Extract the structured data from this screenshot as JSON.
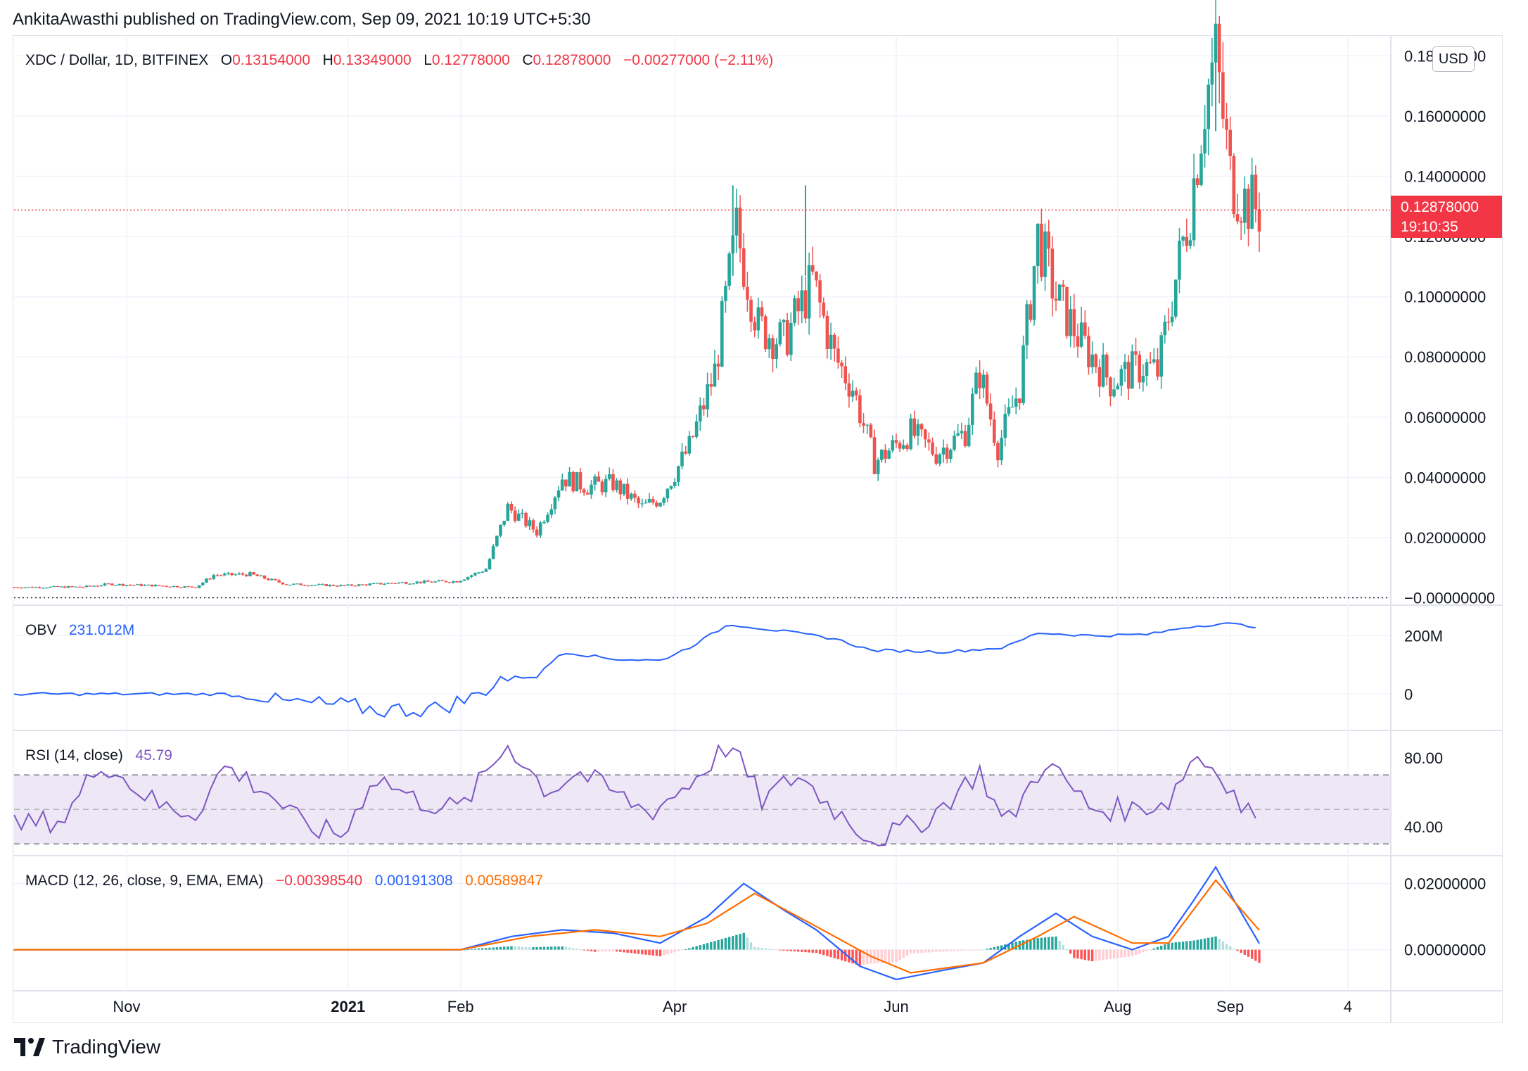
{
  "header": {
    "text": "AnkitaAwasthi published on TradingView.com, Sep 09, 2021 10:19 UTC+5:30"
  },
  "footer": {
    "brand": "TradingView"
  },
  "main_pane": {
    "symbol": "XDC / Dollar, 1D, BITFINEX",
    "o_label": "O",
    "o_value": "0.13154000",
    "h_label": "H",
    "h_value": "0.13349000",
    "l_label": "L",
    "l_value": "0.12778000",
    "c_label": "C",
    "c_value": "0.12878000",
    "change": "−0.00277000 (−2.11%)",
    "currency": "USD",
    "last_price": "0.12878000",
    "countdown": "19:10:35"
  },
  "obv_pane": {
    "name": "OBV",
    "value": "231.012M",
    "ticks": [
      "200M",
      "0"
    ]
  },
  "rsi_pane": {
    "name": "RSI (14, close)",
    "value": "45.79",
    "ticks": [
      "80.00",
      "40.00"
    ]
  },
  "macd_pane": {
    "name": "MACD (12, 26, close, 9, EMA, EMA)",
    "hist_value": "−0.00398540",
    "macd_value": "0.00191308",
    "signal_value": "0.00589847",
    "ticks": [
      "0.02000000",
      "0.00000000"
    ]
  },
  "x_axis": {
    "labels": [
      "Nov",
      "2021",
      "Feb",
      "Apr",
      "Jun",
      "Aug",
      "Sep",
      "4"
    ]
  },
  "colors": {
    "up": "#26a69a",
    "down": "#ef5350",
    "obv": "#2962ff",
    "rsi": "#7e57c2",
    "rsi_band": "#ede7f6",
    "macd": "#2962ff",
    "signal": "#ff6d00",
    "grid": "#f0f3fa",
    "price_line": "#f23645"
  },
  "chart_data": {
    "type": "candlestick",
    "title": "XDC / Dollar, 1D, BITFINEX",
    "y_ticks": [
      "0.18000000",
      "0.16000000",
      "0.14000000",
      "0.12000000",
      "0.10000000",
      "0.08000000",
      "0.06000000",
      "0.04000000",
      "0.02000000",
      "−0.00000000"
    ],
    "ylim": [
      -0.002,
      0.185
    ],
    "x_range": [
      "2020-10-01",
      "2021-09-09"
    ],
    "close_path": [
      [
        "2020-10-01",
        0.0035
      ],
      [
        "2020-10-20",
        0.0036
      ],
      [
        "2020-10-27",
        0.0045
      ],
      [
        "2020-11-10",
        0.004
      ],
      [
        "2020-11-20",
        0.0035
      ],
      [
        "2020-11-25",
        0.0075
      ],
      [
        "2020-12-05",
        0.0078
      ],
      [
        "2020-12-15",
        0.0045
      ],
      [
        "2020-12-31",
        0.004
      ],
      [
        "2021-01-15",
        0.005
      ],
      [
        "2021-01-31",
        0.0055
      ],
      [
        "2021-02-08",
        0.0095
      ],
      [
        "2021-02-14",
        0.03
      ],
      [
        "2021-02-22",
        0.022
      ],
      [
        "2021-03-01",
        0.04
      ],
      [
        "2021-03-08",
        0.037
      ],
      [
        "2021-03-15",
        0.038
      ],
      [
        "2021-03-23",
        0.03
      ],
      [
        "2021-03-28",
        0.033
      ],
      [
        "2021-04-05",
        0.05
      ],
      [
        "2021-04-12",
        0.075
      ],
      [
        "2021-04-18",
        0.122
      ],
      [
        "2021-04-24",
        0.09
      ],
      [
        "2021-05-01",
        0.085
      ],
      [
        "2021-05-05",
        0.095
      ],
      [
        "2021-05-09",
        0.105
      ],
      [
        "2021-05-15",
        0.08
      ],
      [
        "2021-05-20",
        0.07
      ],
      [
        "2021-05-26",
        0.045
      ],
      [
        "2021-06-05",
        0.055
      ],
      [
        "2021-06-12",
        0.048
      ],
      [
        "2021-06-20",
        0.055
      ],
      [
        "2021-06-24",
        0.075
      ],
      [
        "2021-06-29",
        0.05
      ],
      [
        "2021-07-05",
        0.07
      ],
      [
        "2021-07-10",
        0.12
      ],
      [
        "2021-07-15",
        0.1
      ],
      [
        "2021-07-22",
        0.085
      ],
      [
        "2021-07-30",
        0.072
      ],
      [
        "2021-08-08",
        0.077
      ],
      [
        "2021-08-12",
        0.075
      ],
      [
        "2021-08-16",
        0.1
      ],
      [
        "2021-08-21",
        0.13
      ],
      [
        "2021-08-25",
        0.165
      ],
      [
        "2021-08-28",
        0.18
      ],
      [
        "2021-09-01",
        0.14
      ],
      [
        "2021-09-05",
        0.132
      ],
      [
        "2021-09-09",
        0.12878
      ]
    ],
    "highlight_highs": [
      [
        "2021-04-17",
        0.137
      ],
      [
        "2021-05-07",
        0.137
      ],
      [
        "2021-08-28",
        0.185
      ]
    ],
    "obv_path": [
      [
        "2020-10-01",
        0
      ],
      [
        "2020-11-28",
        0
      ],
      [
        "2020-12-10",
        -25
      ],
      [
        "2020-12-31",
        -40
      ],
      [
        "2021-01-10",
        -55
      ],
      [
        "2021-01-25",
        -50
      ],
      [
        "2021-02-05",
        -10
      ],
      [
        "2021-02-12",
        55
      ],
      [
        "2021-02-22",
        60
      ],
      [
        "2021-03-01",
        145
      ],
      [
        "2021-03-15",
        120
      ],
      [
        "2021-03-28",
        115
      ],
      [
        "2021-04-05",
        160
      ],
      [
        "2021-04-16",
        240
      ],
      [
        "2021-05-01",
        215
      ],
      [
        "2021-05-15",
        190
      ],
      [
        "2021-05-25",
        150
      ],
      [
        "2021-06-15",
        145
      ],
      [
        "2021-07-01",
        160
      ],
      [
        "2021-07-10",
        210
      ],
      [
        "2021-07-25",
        200
      ],
      [
        "2021-08-10",
        205
      ],
      [
        "2021-08-20",
        230
      ],
      [
        "2021-08-30",
        242
      ],
      [
        "2021-09-09",
        231
      ]
    ],
    "obv_ylim": [
      -120,
      300
    ],
    "rsi_path": [
      [
        "2020-10-01",
        40
      ],
      [
        "2020-10-15",
        45
      ],
      [
        "2020-10-25",
        78
      ],
      [
        "2020-11-10",
        52
      ],
      [
        "2020-11-20",
        48
      ],
      [
        "2020-11-28",
        75
      ],
      [
        "2020-12-10",
        60
      ],
      [
        "2020-12-20",
        40
      ],
      [
        "2020-12-31",
        35
      ],
      [
        "2021-01-08",
        70
      ],
      [
        "2021-01-20",
        55
      ],
      [
        "2021-02-01",
        50
      ],
      [
        "2021-02-14",
        88
      ],
      [
        "2021-02-25",
        60
      ],
      [
        "2021-03-05",
        72
      ],
      [
        "2021-03-15",
        60
      ],
      [
        "2021-03-25",
        48
      ],
      [
        "2021-04-05",
        65
      ],
      [
        "2021-04-16",
        88
      ],
      [
        "2021-04-25",
        55
      ],
      [
        "2021-05-05",
        70
      ],
      [
        "2021-05-15",
        50
      ],
      [
        "2021-05-26",
        32
      ],
      [
        "2021-06-10",
        45
      ],
      [
        "2021-06-24",
        72
      ],
      [
        "2021-07-01",
        40
      ],
      [
        "2021-07-12",
        78
      ],
      [
        "2021-07-25",
        50
      ],
      [
        "2021-08-05",
        50
      ],
      [
        "2021-08-15",
        55
      ],
      [
        "2021-08-22",
        82
      ],
      [
        "2021-08-30",
        70
      ],
      [
        "2021-09-04",
        52
      ],
      [
        "2021-09-09",
        45.79
      ]
    ],
    "rsi_ylim": [
      24,
      95
    ],
    "rsi_bands": [
      30,
      50,
      70
    ],
    "macd_path": [
      [
        "2020-10-01",
        0
      ],
      [
        "2021-02-01",
        0
      ],
      [
        "2021-02-15",
        0.004
      ],
      [
        "2021-03-01",
        0.006
      ],
      [
        "2021-03-15",
        0.005
      ],
      [
        "2021-03-28",
        0.002
      ],
      [
        "2021-04-10",
        0.01
      ],
      [
        "2021-04-20",
        0.02
      ],
      [
        "2021-05-01",
        0.012
      ],
      [
        "2021-05-10",
        0.006
      ],
      [
        "2021-05-22",
        -0.005
      ],
      [
        "2021-06-01",
        -0.009
      ],
      [
        "2021-06-15",
        -0.006
      ],
      [
        "2021-06-25",
        -0.004
      ],
      [
        "2021-07-05",
        0.004
      ],
      [
        "2021-07-15",
        0.011
      ],
      [
        "2021-07-25",
        0.004
      ],
      [
        "2021-08-05",
        0.0
      ],
      [
        "2021-08-15",
        0.004
      ],
      [
        "2021-08-22",
        0.015
      ],
      [
        "2021-08-28",
        0.025
      ],
      [
        "2021-09-02",
        0.015
      ],
      [
        "2021-09-09",
        0.0019
      ]
    ],
    "signal_path": [
      [
        "2020-10-01",
        0
      ],
      [
        "2021-02-01",
        0
      ],
      [
        "2021-02-20",
        0.004
      ],
      [
        "2021-03-10",
        0.006
      ],
      [
        "2021-03-28",
        0.004
      ],
      [
        "2021-04-10",
        0.008
      ],
      [
        "2021-04-23",
        0.017
      ],
      [
        "2021-05-10",
        0.007
      ],
      [
        "2021-05-25",
        -0.002
      ],
      [
        "2021-06-05",
        -0.007
      ],
      [
        "2021-06-25",
        -0.004
      ],
      [
        "2021-07-10",
        0.004
      ],
      [
        "2021-07-20",
        0.01
      ],
      [
        "2021-08-05",
        0.002
      ],
      [
        "2021-08-15",
        0.002
      ],
      [
        "2021-08-28",
        0.021
      ],
      [
        "2021-09-09",
        0.0059
      ]
    ],
    "macd_ylim": [
      -0.012,
      0.028
    ]
  }
}
